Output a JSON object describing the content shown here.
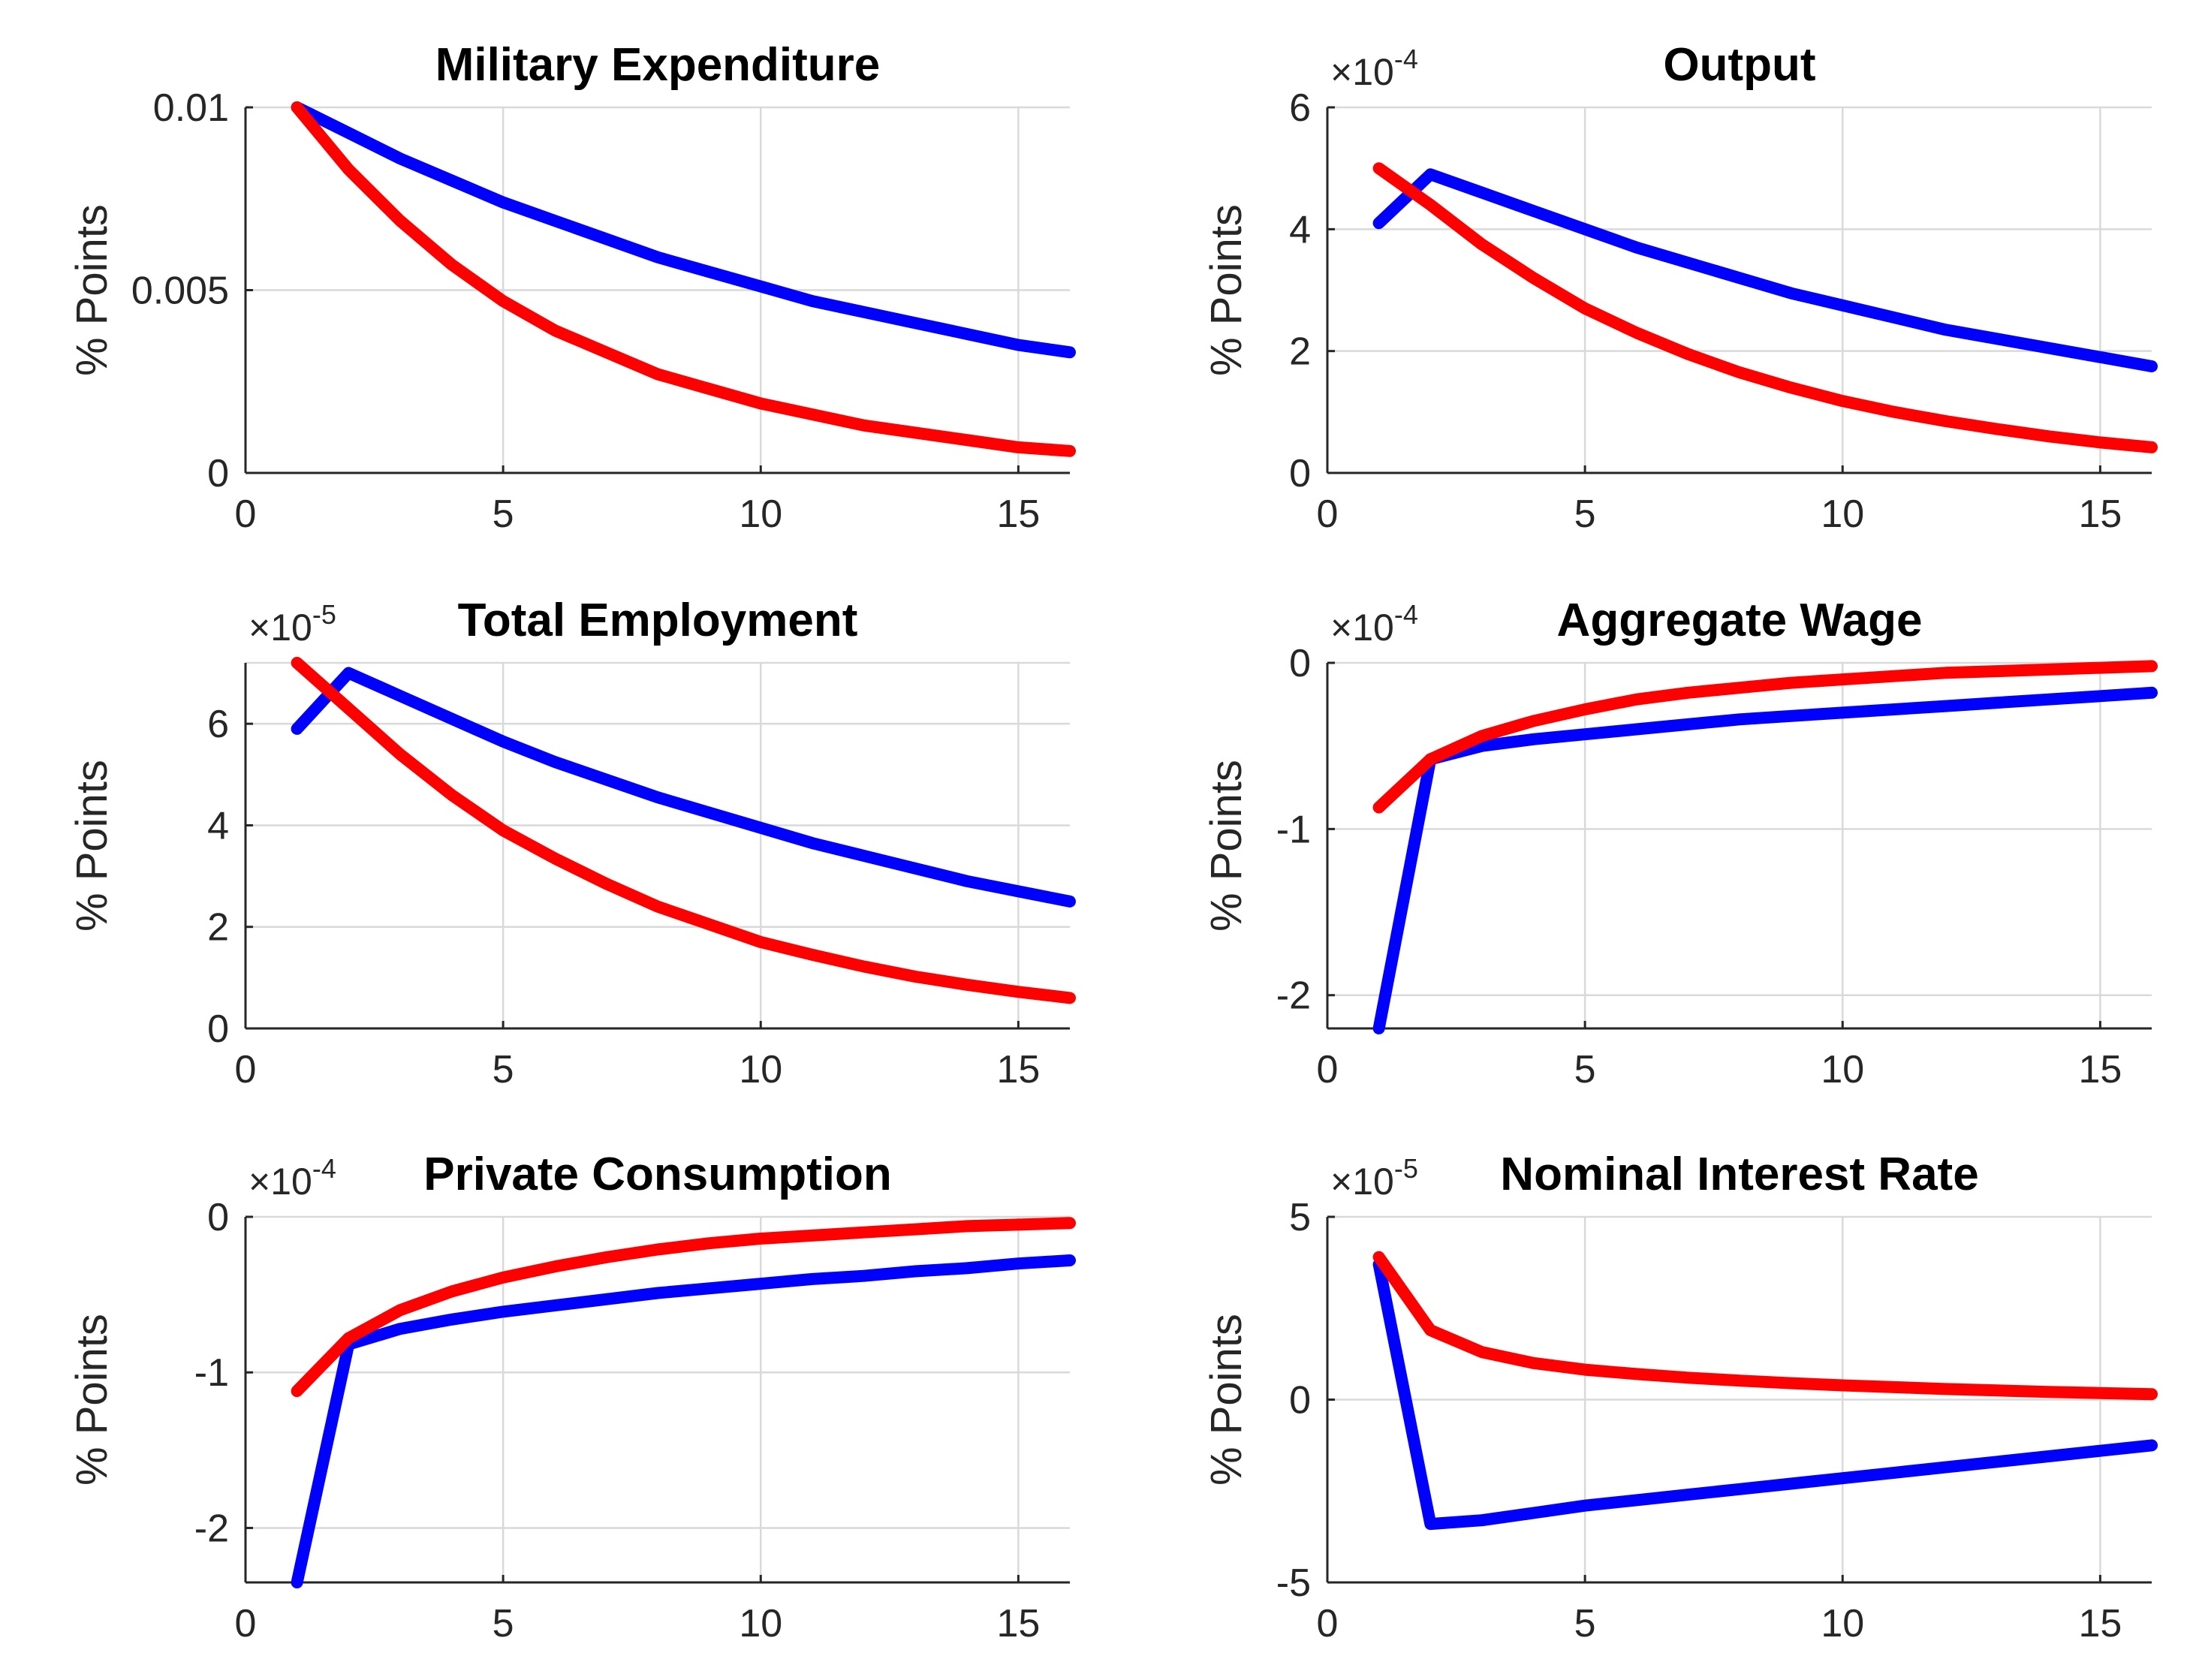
{
  "colors": {
    "blue": "#0000ff",
    "red": "#ff0000"
  },
  "chart_data": [
    {
      "type": "line",
      "title": "Military Expenditure",
      "ylabel": "% Points",
      "multiplier": null,
      "xlim": [
        0,
        16
      ],
      "ylim": [
        0,
        0.01
      ],
      "xticks": [
        0,
        5,
        10,
        15
      ],
      "xtick_labels": [
        "0",
        "5",
        "10",
        "15"
      ],
      "yticks": [
        0,
        0.005,
        0.01
      ],
      "ytick_labels": [
        "0",
        "0.005",
        "0.01"
      ],
      "x": [
        1,
        2,
        3,
        4,
        5,
        6,
        7,
        8,
        9,
        10,
        11,
        12,
        13,
        14,
        15,
        16
      ],
      "series": [
        {
          "name": "blue",
          "color": "#0000ff",
          "values": [
            0.01,
            0.0093,
            0.0086,
            0.008,
            0.0074,
            0.0069,
            0.0064,
            0.0059,
            0.0055,
            0.0051,
            0.0047,
            0.0044,
            0.0041,
            0.0038,
            0.0035,
            0.0033
          ]
        },
        {
          "name": "red",
          "color": "#ff0000",
          "values": [
            0.01,
            0.0083,
            0.0069,
            0.0057,
            0.0047,
            0.0039,
            0.0033,
            0.0027,
            0.0023,
            0.0019,
            0.0016,
            0.0013,
            0.0011,
            0.0009,
            0.0007,
            0.0006
          ]
        }
      ]
    },
    {
      "type": "line",
      "title": "Output",
      "ylabel": "% Points",
      "multiplier": {
        "base": "×10",
        "exp": "-4"
      },
      "xlim": [
        0,
        16
      ],
      "ylim": [
        0,
        6
      ],
      "xticks": [
        0,
        5,
        10,
        15
      ],
      "xtick_labels": [
        "0",
        "5",
        "10",
        "15"
      ],
      "yticks": [
        0,
        2,
        4,
        6
      ],
      "ytick_labels": [
        "0",
        "2",
        "4",
        "6"
      ],
      "x": [
        1,
        2,
        3,
        4,
        5,
        6,
        7,
        8,
        9,
        10,
        11,
        12,
        13,
        14,
        15,
        16
      ],
      "series": [
        {
          "name": "blue",
          "color": "#0000ff",
          "values": [
            4.1,
            4.9,
            4.6,
            4.3,
            4.0,
            3.7,
            3.45,
            3.2,
            2.95,
            2.75,
            2.55,
            2.35,
            2.2,
            2.05,
            1.9,
            1.75
          ]
        },
        {
          "name": "red",
          "color": "#ff0000",
          "values": [
            5.0,
            4.4,
            3.75,
            3.2,
            2.7,
            2.3,
            1.95,
            1.65,
            1.4,
            1.18,
            1.0,
            0.85,
            0.72,
            0.6,
            0.5,
            0.42
          ]
        }
      ]
    },
    {
      "type": "line",
      "title": "Total Employment",
      "ylabel": "% Points",
      "multiplier": {
        "base": "×10",
        "exp": "-5"
      },
      "xlim": [
        0,
        16
      ],
      "ylim": [
        0,
        7.2
      ],
      "xticks": [
        0,
        5,
        10,
        15
      ],
      "xtick_labels": [
        "0",
        "5",
        "10",
        "15"
      ],
      "yticks": [
        0,
        2,
        4,
        6
      ],
      "ytick_labels": [
        "0",
        "2",
        "4",
        "6"
      ],
      "x": [
        1,
        2,
        3,
        4,
        5,
        6,
        7,
        8,
        9,
        10,
        11,
        12,
        13,
        14,
        15,
        16
      ],
      "series": [
        {
          "name": "blue",
          "color": "#0000ff",
          "values": [
            5.9,
            7.0,
            6.55,
            6.1,
            5.65,
            5.25,
            4.9,
            4.55,
            4.25,
            3.95,
            3.65,
            3.4,
            3.15,
            2.9,
            2.7,
            2.5
          ]
        },
        {
          "name": "red",
          "color": "#ff0000",
          "values": [
            7.2,
            6.3,
            5.4,
            4.6,
            3.9,
            3.35,
            2.85,
            2.4,
            2.05,
            1.7,
            1.45,
            1.22,
            1.02,
            0.86,
            0.72,
            0.6
          ]
        }
      ]
    },
    {
      "type": "line",
      "title": "Aggregate Wage",
      "ylabel": "% Points",
      "multiplier": {
        "base": "×10",
        "exp": "-4"
      },
      "xlim": [
        0,
        16
      ],
      "ylim": [
        -2.2,
        0
      ],
      "xticks": [
        0,
        5,
        10,
        15
      ],
      "xtick_labels": [
        "0",
        "5",
        "10",
        "15"
      ],
      "yticks": [
        -2,
        -1,
        0
      ],
      "ytick_labels": [
        "-2",
        "-1",
        "0"
      ],
      "x": [
        1,
        2,
        3,
        4,
        5,
        6,
        7,
        8,
        9,
        10,
        11,
        12,
        13,
        14,
        15,
        16
      ],
      "series": [
        {
          "name": "blue",
          "color": "#0000ff",
          "values": [
            -2.2,
            -0.58,
            -0.5,
            -0.46,
            -0.43,
            -0.4,
            -0.37,
            -0.34,
            -0.32,
            -0.3,
            -0.28,
            -0.26,
            -0.24,
            -0.22,
            -0.2,
            -0.18
          ]
        },
        {
          "name": "red",
          "color": "#ff0000",
          "values": [
            -0.87,
            -0.58,
            -0.44,
            -0.35,
            -0.28,
            -0.22,
            -0.18,
            -0.15,
            -0.12,
            -0.1,
            -0.08,
            -0.06,
            -0.05,
            -0.04,
            -0.03,
            -0.02
          ]
        }
      ]
    },
    {
      "type": "line",
      "title": "Private Consumption",
      "ylabel": "% Points",
      "multiplier": {
        "base": "×10",
        "exp": "-4"
      },
      "xlim": [
        0,
        16
      ],
      "ylim": [
        -2.35,
        0
      ],
      "xticks": [
        0,
        5,
        10,
        15
      ],
      "xtick_labels": [
        "0",
        "5",
        "10",
        "15"
      ],
      "yticks": [
        -2,
        -1,
        0
      ],
      "ytick_labels": [
        "-2",
        "-1",
        "0"
      ],
      "x": [
        1,
        2,
        3,
        4,
        5,
        6,
        7,
        8,
        9,
        10,
        11,
        12,
        13,
        14,
        15,
        16
      ],
      "series": [
        {
          "name": "blue",
          "color": "#0000ff",
          "values": [
            -2.35,
            -0.82,
            -0.72,
            -0.66,
            -0.61,
            -0.57,
            -0.53,
            -0.49,
            -0.46,
            -0.43,
            -0.4,
            -0.38,
            -0.35,
            -0.33,
            -0.3,
            -0.28
          ]
        },
        {
          "name": "red",
          "color": "#ff0000",
          "values": [
            -1.12,
            -0.78,
            -0.6,
            -0.48,
            -0.39,
            -0.32,
            -0.26,
            -0.21,
            -0.17,
            -0.14,
            -0.12,
            -0.1,
            -0.08,
            -0.06,
            -0.05,
            -0.04
          ]
        }
      ]
    },
    {
      "type": "line",
      "title": "Nominal Interest Rate",
      "ylabel": "% Points",
      "multiplier": {
        "base": "×10",
        "exp": "-5"
      },
      "xlim": [
        0,
        16
      ],
      "ylim": [
        -5,
        5
      ],
      "xticks": [
        0,
        5,
        10,
        15
      ],
      "xtick_labels": [
        "0",
        "5",
        "10",
        "15"
      ],
      "yticks": [
        -5,
        0,
        5
      ],
      "ytick_labels": [
        "-5",
        "0",
        "5"
      ],
      "x": [
        1,
        2,
        3,
        4,
        5,
        6,
        7,
        8,
        9,
        10,
        11,
        12,
        13,
        14,
        15,
        16
      ],
      "series": [
        {
          "name": "blue",
          "color": "#0000ff",
          "values": [
            3.7,
            -3.4,
            -3.3,
            -3.1,
            -2.9,
            -2.75,
            -2.6,
            -2.45,
            -2.3,
            -2.15,
            -2.0,
            -1.85,
            -1.7,
            -1.55,
            -1.4,
            -1.25
          ]
        },
        {
          "name": "red",
          "color": "#ff0000",
          "values": [
            3.9,
            1.9,
            1.3,
            1.0,
            0.82,
            0.7,
            0.6,
            0.52,
            0.45,
            0.39,
            0.34,
            0.29,
            0.25,
            0.21,
            0.18,
            0.15
          ]
        }
      ]
    }
  ]
}
